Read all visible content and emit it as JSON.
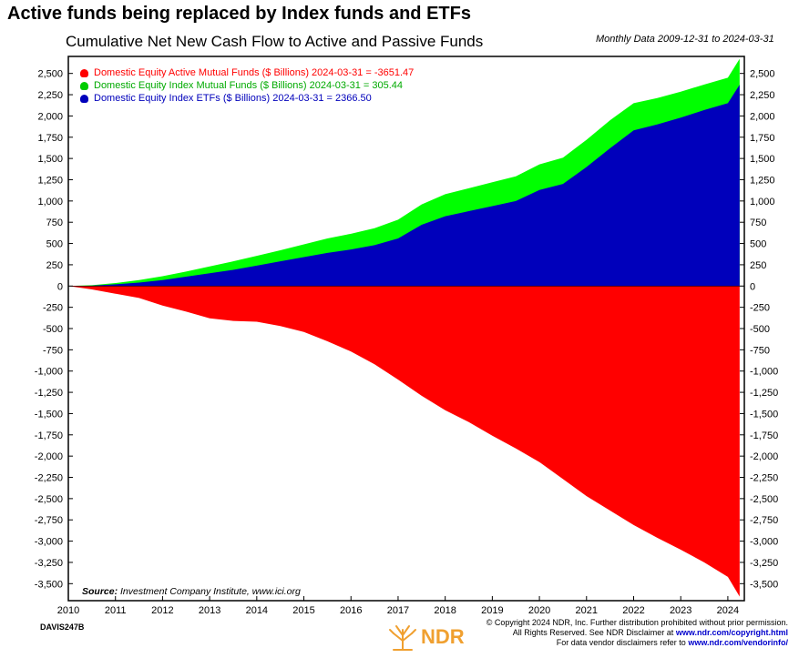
{
  "headline": "Active funds being replaced by Index funds and ETFs",
  "chart_data": {
    "type": "area",
    "title": "Cumulative Net New Cash Flow to Active and Passive Funds",
    "subtitle": "Monthly Data 2009-12-31 to 2024-03-31",
    "source_label": "Source:",
    "source_text": "Investment Company Institute, www.ici.org",
    "xlim": [
      2010,
      2024.35
    ],
    "ylim": [
      -3700,
      2700
    ],
    "x_ticks": [
      2010,
      2011,
      2012,
      2013,
      2014,
      2015,
      2016,
      2017,
      2018,
      2019,
      2020,
      2021,
      2022,
      2023,
      2024
    ],
    "y_ticks": [
      2500,
      2250,
      2000,
      1750,
      1500,
      1250,
      1000,
      750,
      500,
      250,
      0,
      -250,
      -500,
      -750,
      -1000,
      -1250,
      -1500,
      -1750,
      -2000,
      -2250,
      -2500,
      -2750,
      -3000,
      -3250,
      -3500
    ],
    "y_tick_labels": [
      "2,500",
      "2,250",
      "2,000",
      "1,750",
      "1,500",
      "1,250",
      "1,000",
      "750",
      "500",
      "250",
      "0",
      "-250",
      "-500",
      "-750",
      "-1,000",
      "-1,250",
      "-1,500",
      "-1,750",
      "-2,000",
      "-2,250",
      "-2,500",
      "-2,750",
      "-3,000",
      "-3,250",
      "-3,500"
    ],
    "grid": false,
    "legend_position": "top-left",
    "series": [
      {
        "name": "Domestic Equity Active Mutual Funds ($ Billions) 2024-03-31 = -3651.47",
        "color": "#ff0000",
        "x": [
          2010,
          2010.5,
          2011,
          2011.5,
          2012,
          2012.5,
          2013,
          2013.5,
          2014,
          2014.5,
          2015,
          2015.5,
          2016,
          2016.5,
          2017,
          2017.5,
          2018,
          2018.5,
          2019,
          2019.5,
          2020,
          2020.5,
          2021,
          2021.5,
          2022,
          2022.5,
          2023,
          2023.5,
          2024,
          2024.25
        ],
        "y": [
          0,
          -40,
          -90,
          -140,
          -230,
          -300,
          -380,
          -410,
          -420,
          -470,
          -540,
          -650,
          -770,
          -920,
          -1100,
          -1290,
          -1460,
          -1600,
          -1760,
          -1910,
          -2070,
          -2270,
          -2470,
          -2640,
          -2810,
          -2960,
          -3100,
          -3250,
          -3420,
          -3651.47
        ]
      },
      {
        "name": "Domestic Equity Index Mutual Funds ($ Billions) 2024-03-31 = 305.44",
        "color": "#00ff00",
        "x": [
          2010,
          2010.5,
          2011,
          2011.5,
          2012,
          2012.5,
          2013,
          2013.5,
          2014,
          2014.5,
          2015,
          2015.5,
          2016,
          2016.5,
          2017,
          2017.5,
          2018,
          2018.5,
          2019,
          2019.5,
          2020,
          2020.5,
          2021,
          2021.5,
          2022,
          2022.5,
          2023,
          2023.5,
          2024,
          2024.25
        ],
        "y": [
          0,
          5,
          15,
          30,
          45,
          60,
          80,
          100,
          115,
          130,
          150,
          170,
          185,
          200,
          220,
          240,
          260,
          270,
          280,
          290,
          300,
          310,
          320,
          330,
          320,
          310,
          305,
          300,
          300,
          305.44
        ]
      },
      {
        "name": "Domestic Equity Index ETFs ($ Billions) 2024-03-31 = 2366.50",
        "color": "#0000bb",
        "x": [
          2010,
          2010.5,
          2011,
          2011.5,
          2012,
          2012.5,
          2013,
          2013.5,
          2014,
          2014.5,
          2015,
          2015.5,
          2016,
          2016.5,
          2017,
          2017.5,
          2018,
          2018.5,
          2019,
          2019.5,
          2020,
          2020.5,
          2021,
          2021.5,
          2022,
          2022.5,
          2023,
          2023.5,
          2024,
          2024.25
        ],
        "y": [
          0,
          5,
          20,
          40,
          70,
          110,
          150,
          190,
          240,
          290,
          340,
          390,
          430,
          480,
          560,
          720,
          820,
          880,
          940,
          1000,
          1130,
          1200,
          1400,
          1620,
          1830,
          1900,
          1980,
          2070,
          2150,
          2366.5
        ]
      }
    ]
  },
  "footer": {
    "chart_id": "DAVIS247B",
    "logo_text": "NDR",
    "copyright_line1": "© Copyright 2024 NDR, Inc. Further distribution prohibited without prior permission.",
    "copyright_line2_prefix": "All Rights Reserved. See NDR Disclaimer at",
    "copyright_line2_link": "www.ndr.com/copyright.html",
    "copyright_line3_prefix": "For data vendor disclaimers refer to",
    "copyright_line3_link": "www.ndr.com/vendorinfo/"
  }
}
